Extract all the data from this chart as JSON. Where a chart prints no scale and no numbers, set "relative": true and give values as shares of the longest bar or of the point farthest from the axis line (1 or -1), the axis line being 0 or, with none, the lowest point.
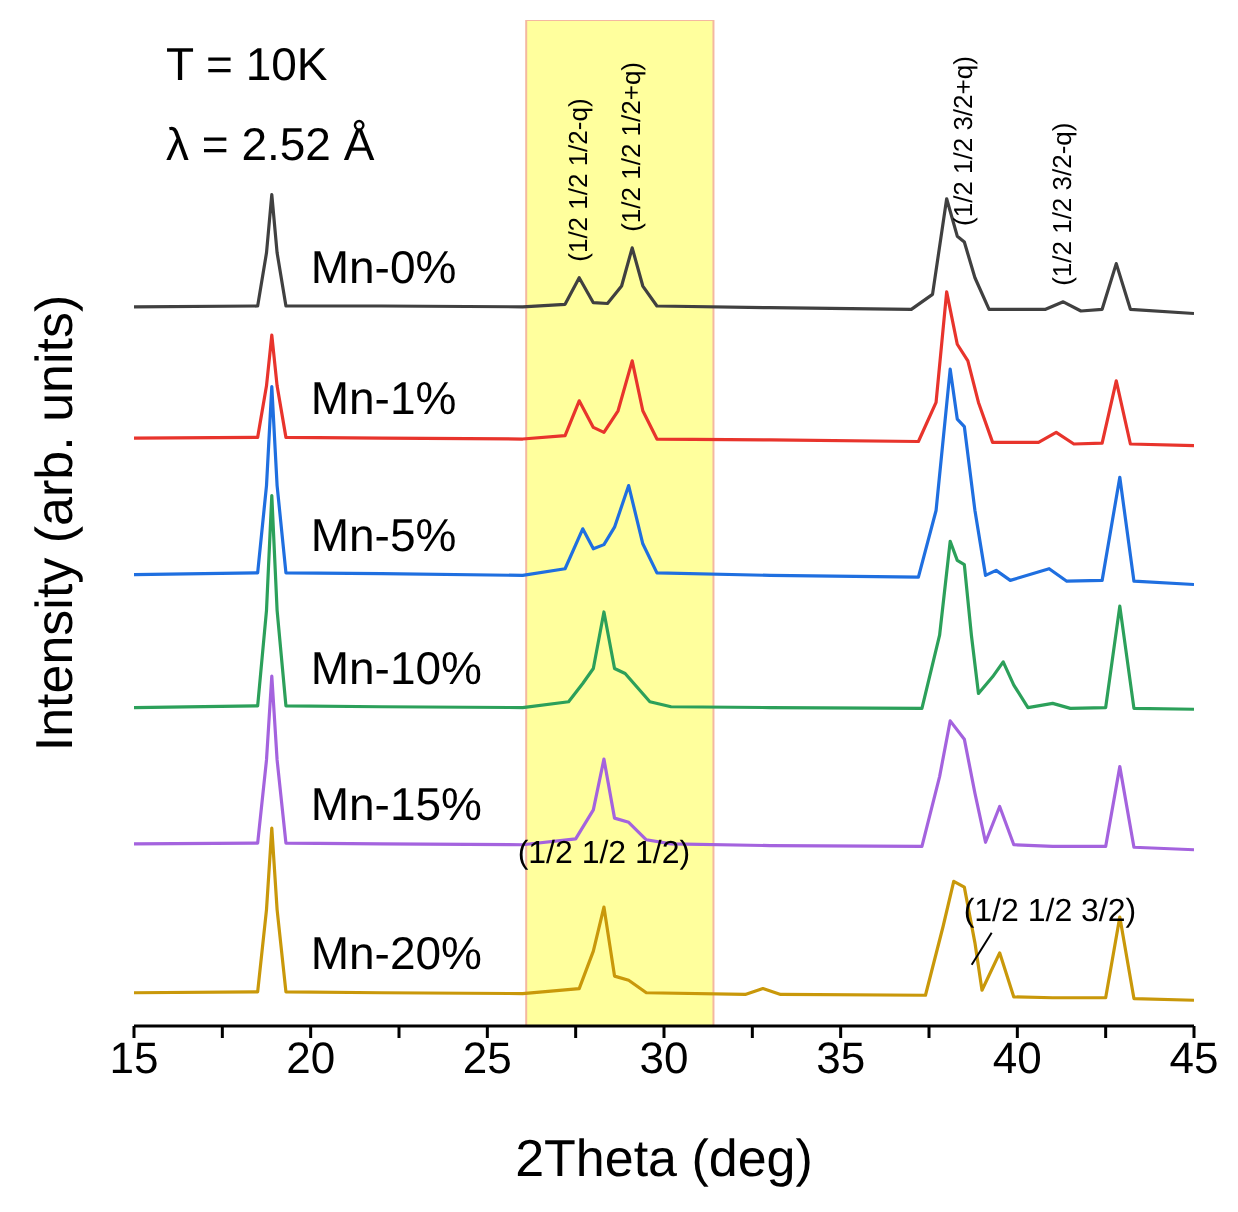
{
  "chart_data": {
    "type": "line",
    "relative": true,
    "xlabel": "2Theta (deg)",
    "ylabel": "Intensity (arb. units)",
    "xlim": [
      15,
      45
    ],
    "xticks": [
      15,
      {
        "value": 17.5,
        "label": null
      },
      20,
      {
        "value": 22.5,
        "label": null
      },
      25,
      {
        "value": 27.5,
        "label": null
      },
      30,
      {
        "value": 32.5,
        "label": null
      },
      35,
      {
        "value": 37.5,
        "label": null
      },
      40,
      {
        "value": 42.5,
        "label": null
      },
      45
    ],
    "legend": false,
    "grid": false,
    "marker": "none",
    "line_style": "solid",
    "bands": [
      {
        "axis": "x",
        "from": 26.1,
        "to": 31.4,
        "color": "#ffff8c"
      }
    ],
    "annotations": [
      "T = 10K",
      "λ = 2.52 Å",
      {
        "text": "(1/2 1/2 1/2-q)",
        "x": 27.6,
        "y": 0.9
      },
      {
        "text": "(1/2 1/2 1/2+q)",
        "x": 29.1,
        "y": 0.936
      },
      {
        "text": "(1/2 1/2 3/2+q)",
        "x": 38.5,
        "y": 0.943
      },
      {
        "text": "(1/2 1/2 3/2-q)",
        "x": 41.3,
        "y": 0.871
      },
      {
        "text": "(1/2 1/2 1/2)",
        "x": 28.3,
        "y": 0.143
      },
      {
        "text": "(1/2 1/2 3/2)",
        "x": 39.5,
        "y": 0.088
      }
    ],
    "series": [
      {
        "name": "Mn-0%",
        "color": "#404040",
        "x": [
          15,
          18.5,
          18.75,
          18.9,
          19.05,
          19.3,
          22,
          26,
          27.2,
          27.6,
          28.0,
          28.4,
          28.8,
          29.1,
          29.4,
          29.8,
          33,
          37.0,
          37.6,
          38.0,
          38.3,
          38.5,
          38.8,
          39.2,
          40.8,
          41.3,
          41.8,
          42.4,
          42.8,
          43.2,
          45
        ],
        "values": [
          0.865,
          0.866,
          0.93,
          1.0,
          0.93,
          0.866,
          0.866,
          0.865,
          0.868,
          0.9,
          0.87,
          0.869,
          0.89,
          0.936,
          0.89,
          0.866,
          0.864,
          0.862,
          0.88,
          0.995,
          0.95,
          0.943,
          0.9,
          0.862,
          0.862,
          0.871,
          0.86,
          0.862,
          0.917,
          0.862,
          0.857
        ]
      },
      {
        "name": "Mn-1%",
        "color": "#e8342c",
        "x": [
          15,
          18.5,
          18.75,
          18.9,
          19.05,
          19.3,
          22,
          26,
          27.2,
          27.6,
          28.0,
          28.3,
          28.7,
          29.1,
          29.4,
          29.8,
          33,
          37.2,
          37.7,
          38.0,
          38.3,
          38.6,
          38.9,
          39.3,
          40.6,
          41.1,
          41.6,
          42.4,
          42.8,
          43.2,
          45
        ],
        "values": [
          0.707,
          0.708,
          0.77,
          0.831,
          0.77,
          0.708,
          0.707,
          0.706,
          0.71,
          0.752,
          0.72,
          0.714,
          0.74,
          0.8,
          0.74,
          0.706,
          0.705,
          0.703,
          0.75,
          0.883,
          0.82,
          0.8,
          0.75,
          0.702,
          0.702,
          0.714,
          0.7,
          0.701,
          0.776,
          0.7,
          0.698
        ]
      },
      {
        "name": "Mn-5%",
        "color": "#1f6fe0",
        "x": [
          15,
          18.5,
          18.75,
          18.9,
          19.05,
          19.3,
          22,
          26,
          27.2,
          27.7,
          28.0,
          28.3,
          28.6,
          29.0,
          29.4,
          29.8,
          33,
          37.2,
          37.7,
          38.1,
          38.3,
          38.5,
          38.8,
          39.1,
          39.4,
          39.8,
          40.9,
          41.4,
          42.4,
          42.9,
          43.3,
          45
        ],
        "values": [
          0.543,
          0.545,
          0.65,
          0.769,
          0.65,
          0.545,
          0.544,
          0.542,
          0.55,
          0.598,
          0.574,
          0.579,
          0.6,
          0.65,
          0.58,
          0.545,
          0.542,
          0.54,
          0.62,
          0.79,
          0.73,
          0.721,
          0.62,
          0.542,
          0.548,
          0.536,
          0.55,
          0.535,
          0.536,
          0.66,
          0.535,
          0.531
        ]
      },
      {
        "name": "Mn-10%",
        "color": "#2ca05a",
        "x": [
          15,
          18.5,
          18.75,
          18.9,
          19.05,
          19.3,
          22,
          26,
          27.3,
          27.7,
          28.0,
          28.3,
          28.6,
          28.9,
          29.6,
          30.2,
          33,
          37.3,
          37.8,
          38.1,
          38.3,
          38.5,
          38.7,
          38.9,
          39.3,
          39.6,
          39.9,
          40.3,
          41.0,
          41.5,
          42.5,
          42.9,
          43.3,
          45
        ],
        "values": [
          0.383,
          0.385,
          0.5,
          0.638,
          0.5,
          0.385,
          0.384,
          0.383,
          0.39,
          0.412,
          0.43,
          0.498,
          0.43,
          0.424,
          0.39,
          0.384,
          0.383,
          0.382,
          0.47,
          0.583,
          0.56,
          0.555,
          0.47,
          0.4,
          0.42,
          0.438,
          0.41,
          0.383,
          0.388,
          0.382,
          0.383,
          0.505,
          0.382,
          0.381
        ]
      },
      {
        "name": "Mn-15%",
        "color": "#a463de",
        "x": [
          15,
          18.5,
          18.75,
          18.9,
          19.05,
          19.3,
          22,
          26,
          27.5,
          28.0,
          28.3,
          28.6,
          29.0,
          29.5,
          30.2,
          33,
          37.3,
          37.8,
          38.1,
          38.5,
          38.8,
          39.1,
          39.5,
          39.9,
          41,
          42.5,
          42.9,
          43.3,
          45
        ],
        "values": [
          0.219,
          0.22,
          0.32,
          0.421,
          0.32,
          0.22,
          0.219,
          0.218,
          0.225,
          0.26,
          0.321,
          0.25,
          0.245,
          0.224,
          0.219,
          0.217,
          0.216,
          0.3,
          0.367,
          0.345,
          0.28,
          0.221,
          0.264,
          0.218,
          0.216,
          0.216,
          0.312,
          0.215,
          0.212
        ]
      },
      {
        "name": "Mn-20%",
        "color": "#c9980a",
        "x": [
          15,
          18.5,
          18.75,
          18.9,
          19.05,
          19.3,
          22,
          26,
          27.6,
          28.0,
          28.3,
          28.6,
          29.0,
          29.5,
          32.3,
          32.8,
          33.3,
          37.4,
          37.9,
          38.2,
          38.5,
          38.8,
          39.0,
          39.5,
          39.9,
          41,
          42.5,
          42.9,
          43.3,
          45
        ],
        "values": [
          0.04,
          0.041,
          0.14,
          0.238,
          0.14,
          0.041,
          0.04,
          0.039,
          0.045,
          0.09,
          0.143,
          0.06,
          0.055,
          0.04,
          0.038,
          0.045,
          0.038,
          0.037,
          0.12,
          0.174,
          0.167,
          0.1,
          0.043,
          0.088,
          0.035,
          0.034,
          0.034,
          0.131,
          0.033,
          0.031
        ]
      }
    ]
  }
}
